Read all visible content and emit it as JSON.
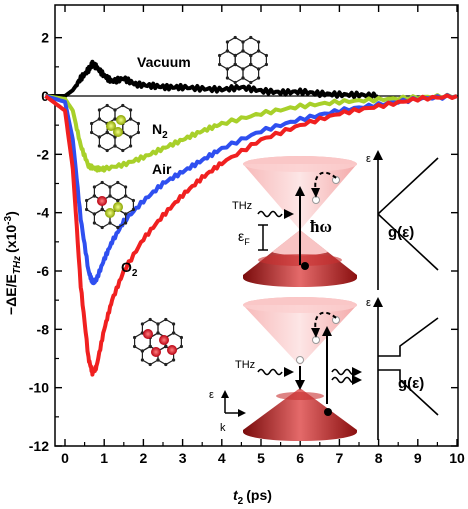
{
  "chart_data": {
    "type": "line",
    "xlabel": "t",
    "xlabel_sub": "2",
    "xlabel_unit": "(ps)",
    "ylabel_main": "−ΔE/E",
    "ylabel_sub": "THz",
    "ylabel_unit": "(x10",
    "ylabel_exp": "-3",
    "ylabel_close": ")",
    "xlim": [
      -0.5,
      10
    ],
    "ylim": [
      -12,
      3
    ],
    "x_ticks": [
      "0",
      "1",
      "2",
      "3",
      "4",
      "5",
      "6",
      "7",
      "8",
      "9",
      "10"
    ],
    "y_ticks": [
      "2",
      "0",
      "-2",
      "-4",
      "-6",
      "-8",
      "-10",
      "-12"
    ],
    "grid": false,
    "series": [
      {
        "name": "Vacuum",
        "color": "#000000",
        "x": [
          -0.5,
          0.0,
          0.2,
          0.4,
          0.6,
          0.7,
          0.8,
          1.0,
          1.2,
          1.5,
          1.8,
          2.2,
          2.6,
          3.0,
          3.5,
          4.0,
          4.5,
          5.0,
          5.5,
          6.0,
          6.5,
          7.0,
          7.5,
          8.0
        ],
        "y": [
          0.0,
          0.0,
          0.2,
          0.6,
          0.9,
          1.1,
          1.0,
          0.7,
          0.5,
          0.6,
          0.4,
          0.35,
          0.3,
          0.3,
          0.25,
          0.22,
          0.3,
          0.18,
          0.12,
          0.15,
          0.08,
          0.05,
          0.04,
          0.0
        ]
      },
      {
        "name": "N",
        "sub": "2",
        "color": "#a8d02a",
        "x": [
          -0.5,
          0.0,
          0.2,
          0.4,
          0.6,
          0.8,
          1.0,
          1.5,
          2.0,
          2.5,
          3.0,
          3.5,
          4.0,
          5.0,
          6.0,
          7.0,
          8.0,
          9.0,
          10.0
        ],
        "y": [
          0.0,
          -0.1,
          -0.5,
          -1.7,
          -2.4,
          -2.5,
          -2.5,
          -2.35,
          -2.1,
          -1.8,
          -1.5,
          -1.2,
          -0.95,
          -0.6,
          -0.35,
          -0.2,
          -0.12,
          -0.05,
          0.0
        ]
      },
      {
        "name": "Air",
        "color": "#2f4ff0",
        "x": [
          -0.5,
          0.0,
          0.2,
          0.4,
          0.6,
          0.7,
          0.8,
          1.0,
          1.2,
          1.5,
          2.0,
          2.5,
          3.0,
          3.5,
          4.0,
          5.0,
          6.0,
          7.0,
          8.0,
          9.0,
          10.0
        ],
        "y": [
          0.0,
          -0.2,
          -1.5,
          -4.2,
          -6.0,
          -6.4,
          -6.3,
          -5.6,
          -5.0,
          -4.3,
          -3.6,
          -3.0,
          -2.6,
          -2.2,
          -1.8,
          -1.2,
          -0.8,
          -0.5,
          -0.3,
          -0.1,
          0.0
        ]
      },
      {
        "name": "O",
        "sub": "2",
        "color": "#f02020",
        "x": [
          -0.5,
          0.0,
          0.2,
          0.4,
          0.6,
          0.7,
          0.8,
          1.0,
          1.2,
          1.5,
          2.0,
          2.5,
          3.0,
          3.5,
          4.0,
          5.0,
          6.0,
          7.0,
          8.0,
          9.0,
          10.0
        ],
        "y": [
          0.0,
          -0.5,
          -2.5,
          -6.5,
          -9.0,
          -9.5,
          -9.3,
          -8.0,
          -7.0,
          -6.0,
          -4.9,
          -4.1,
          -3.4,
          -2.8,
          -2.3,
          -1.5,
          -1.0,
          -0.6,
          -0.35,
          -0.1,
          0.0
        ]
      }
    ]
  },
  "inset": {
    "thz_label_top": "THz",
    "thz_label_bottom": "THz",
    "fermi_label": "ε",
    "fermi_sub": "F",
    "hbar_omega": "ħω",
    "dos_label_top": "g(ε)",
    "dos_label_bottom": "g(ε)",
    "eps_axis_top": "ε",
    "eps_axis_bottom": "ε",
    "axes_eps": "ε",
    "axes_k": "k"
  }
}
